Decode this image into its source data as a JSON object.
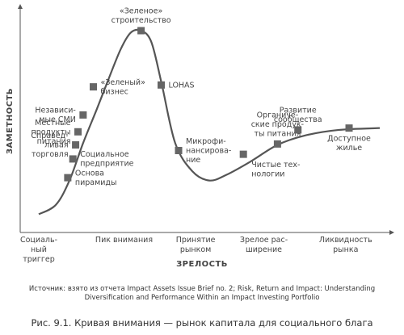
{
  "chart_data": {
    "type": "line",
    "ylabel": "ЗАМЕТНОСТЬ",
    "xlabel": "ЗРЕЛОСТЬ",
    "stages": [
      "Социаль-\nный\nтриггер",
      "Пик внимания",
      "Принятие\nрынком",
      "Зрелое рас-\nширение",
      "Ликвидность\nрынка"
    ],
    "curve": [
      {
        "x": 0.0,
        "y": 0.02
      },
      {
        "x": 0.05,
        "y": 0.07
      },
      {
        "x": 0.09,
        "y": 0.2
      },
      {
        "x": 0.13,
        "y": 0.4
      },
      {
        "x": 0.17,
        "y": 0.58
      },
      {
        "x": 0.2,
        "y": 0.72
      },
      {
        "x": 0.24,
        "y": 0.9
      },
      {
        "x": 0.27,
        "y": 0.99
      },
      {
        "x": 0.3,
        "y": 1.0
      },
      {
        "x": 0.33,
        "y": 0.94
      },
      {
        "x": 0.36,
        "y": 0.72
      },
      {
        "x": 0.4,
        "y": 0.4
      },
      {
        "x": 0.45,
        "y": 0.25
      },
      {
        "x": 0.5,
        "y": 0.2
      },
      {
        "x": 0.55,
        "y": 0.23
      },
      {
        "x": 0.62,
        "y": 0.3
      },
      {
        "x": 0.7,
        "y": 0.39
      },
      {
        "x": 0.78,
        "y": 0.44
      },
      {
        "x": 0.88,
        "y": 0.47
      },
      {
        "x": 1.0,
        "y": 0.48
      }
    ],
    "points": [
      {
        "label": "Основа\nпирамиды",
        "x": 0.085,
        "y": 0.215,
        "side": "right"
      },
      {
        "label": "Социальное\nпредприятие",
        "x": 0.1,
        "y": 0.315,
        "side": "right"
      },
      {
        "label": "Справед-\nливая\nторговля",
        "x": 0.108,
        "y": 0.39,
        "side": "left"
      },
      {
        "label": "Местные\nпродукты\nпитания",
        "x": 0.115,
        "y": 0.46,
        "side": "left"
      },
      {
        "label": "Независи-\nмые СМИ",
        "x": 0.13,
        "y": 0.55,
        "side": "left"
      },
      {
        "label": "«Зеленый»\nбизнес",
        "x": 0.16,
        "y": 0.7,
        "side": "right"
      },
      {
        "label": "«Зеленое»\nстроительство",
        "x": 0.3,
        "y": 1.0,
        "side": "top"
      },
      {
        "label": "LOHAS",
        "x": 0.359,
        "y": 0.71,
        "side": "right"
      },
      {
        "label": "Микрофи-\nнансирова-\nние",
        "x": 0.41,
        "y": 0.36,
        "side": "right"
      },
      {
        "label": "Чистые тех-\nнологии",
        "x": 0.6,
        "y": 0.34,
        "side": "below-right"
      },
      {
        "label": "Органиче-\nские продук-\nты питания",
        "x": 0.7,
        "y": 0.395,
        "side": "top"
      },
      {
        "label": "Развитие\nсообщества",
        "x": 0.76,
        "y": 0.47,
        "side": "top"
      },
      {
        "label": "Доступное\nжилье",
        "x": 0.91,
        "y": 0.48,
        "side": "below"
      }
    ]
  },
  "source_text": "Источник: взято из отчета  Impact Assets Issue Brief no. 2; Risk, Return and Impact: Understanding\nDiversification and Performance Within an Impact Investing Portfolio",
  "caption": "Рис. 9.1. Кривая внимания — рынок капитала для социального блага"
}
